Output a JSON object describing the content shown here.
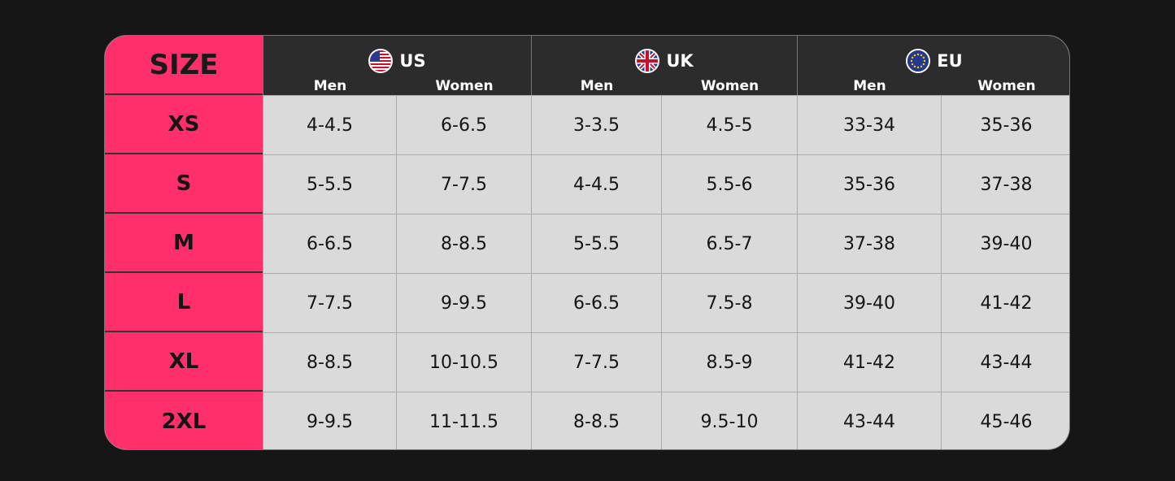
{
  "title": "SIZE",
  "regions": [
    {
      "name": "US",
      "flag": "us-flag-icon",
      "sub": [
        "Men",
        "Women"
      ]
    },
    {
      "name": "UK",
      "flag": "uk-flag-icon",
      "sub": [
        "Men",
        "Women"
      ]
    },
    {
      "name": "EU",
      "flag": "eu-flag-icon",
      "sub": [
        "Men",
        "Women"
      ]
    }
  ],
  "rows": [
    {
      "size": "XS",
      "values": [
        "4-4.5",
        "6-6.5",
        "3-3.5",
        "4.5-5",
        "33-34",
        "35-36"
      ]
    },
    {
      "size": "S",
      "values": [
        "5-5.5",
        "7-7.5",
        "4-4.5",
        "5.5-6",
        "35-36",
        "37-38"
      ]
    },
    {
      "size": "M",
      "values": [
        "6-6.5",
        "8-8.5",
        "5-5.5",
        "6.5-7",
        "37-38",
        "39-40"
      ]
    },
    {
      "size": "L",
      "values": [
        "7-7.5",
        "9-9.5",
        "6-6.5",
        "7.5-8",
        "39-40",
        "41-42"
      ]
    },
    {
      "size": "XL",
      "values": [
        "8-8.5",
        "10-10.5",
        "7-7.5",
        "8.5-9",
        "41-42",
        "43-44"
      ]
    },
    {
      "size": "2XL",
      "values": [
        "9-9.5",
        "11-11.5",
        "8-8.5",
        "9.5-10",
        "43-44",
        "45-46"
      ]
    }
  ],
  "colors": {
    "size_column": "#ff2f6b",
    "header": "#2c2c2c",
    "cell": "#dadada",
    "background": "#161616"
  }
}
